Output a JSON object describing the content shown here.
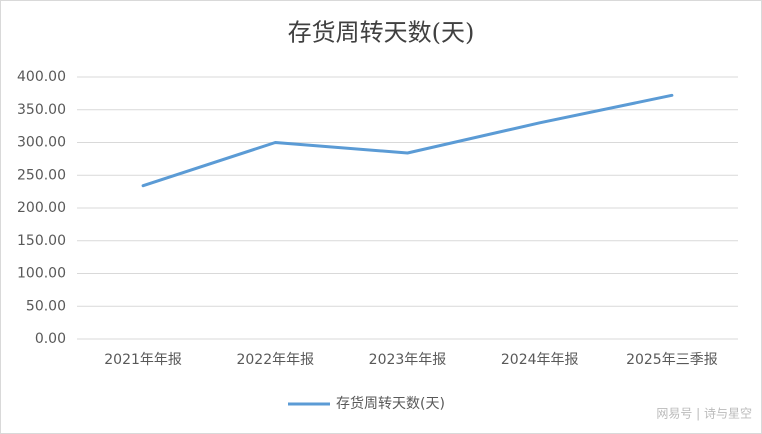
{
  "chart_data": {
    "type": "line",
    "title": "存货周转天数(天)",
    "categories": [
      "2021年年报",
      "2022年年报",
      "2023年年报",
      "2024年年报",
      "2025年三季报"
    ],
    "series": [
      {
        "name": "存货周转天数(天)",
        "color": "#5b9bd5",
        "values": [
          234,
          300,
          284,
          330,
          372
        ]
      }
    ],
    "ylim": [
      0,
      400
    ],
    "yticks": [
      {
        "value": 0,
        "label": "0.00"
      },
      {
        "value": 50,
        "label": "50.00"
      },
      {
        "value": 100,
        "label": "100.00"
      },
      {
        "value": 150,
        "label": "150.00"
      },
      {
        "value": 200,
        "label": "200.00"
      },
      {
        "value": 250,
        "label": "250.00"
      },
      {
        "value": 300,
        "label": "300.00"
      },
      {
        "value": 350,
        "label": "350.00"
      },
      {
        "value": 400,
        "label": "400.00"
      }
    ],
    "grid": true,
    "legend": "bottom",
    "watermark": "网易号 | 诗与星空"
  }
}
